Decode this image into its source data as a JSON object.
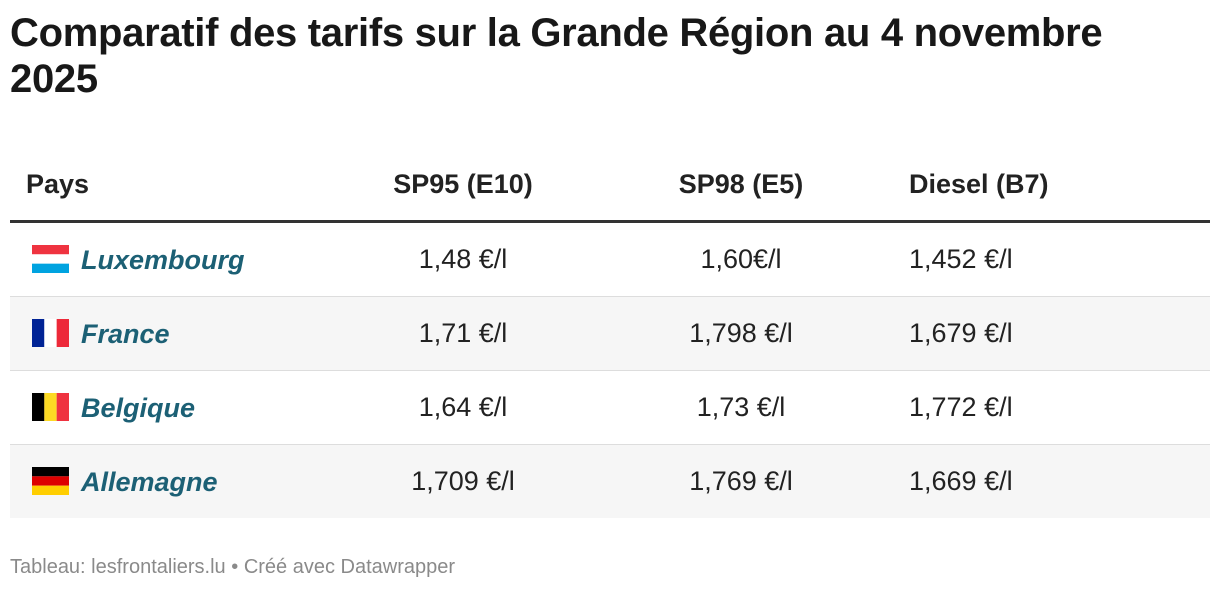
{
  "title": "Comparatif des tarifs sur la Grande Région au 4 novembre 2025",
  "footer": {
    "source_label": "Tableau: lesfrontaliers.lu",
    "separator": " • ",
    "credit": "Créé avec Datawrapper"
  },
  "chart_data": {
    "type": "table",
    "columns": [
      "Pays",
      "SP95 (E10)",
      "SP98 (E5)",
      "Diesel (B7)"
    ],
    "rows": [
      {
        "country": "Luxembourg",
        "flag": "luxembourg-flag",
        "sp95": "1,48 €/l",
        "sp98": "1,60€/l",
        "diesel": "1,452 €/l"
      },
      {
        "country": "France",
        "flag": "france-flag",
        "sp95": "1,71 €/l",
        "sp98": "1,798 €/l",
        "diesel": "1,679 €/l"
      },
      {
        "country": "Belgique",
        "flag": "belgium-flag",
        "sp95": "1,64 €/l",
        "sp98": "1,73 €/l",
        "diesel": "1,772 €/l"
      },
      {
        "country": "Allemagne",
        "flag": "germany-flag",
        "sp95": "1,709 €/l",
        "sp98": "1,769 €/l",
        "diesel": "1,669 €/l"
      }
    ],
    "colors": {
      "country_text": "#1c6075",
      "alt_row_bg": "#f6f6f6",
      "header_rule": "#333333"
    }
  }
}
